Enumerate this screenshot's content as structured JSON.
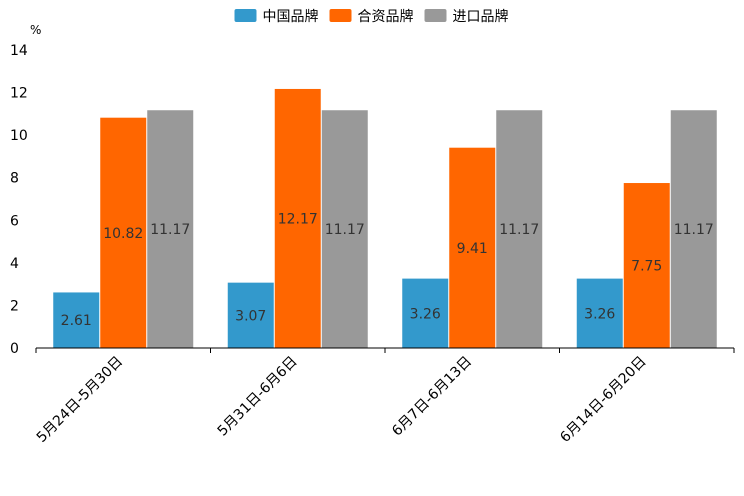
{
  "chart_data": {
    "type": "bar",
    "unit": "%",
    "categories": [
      "5月24日-5月30日",
      "5月31日-6月6日",
      "6月7日-6月13日",
      "6月14日-6月20日"
    ],
    "series": [
      {
        "name": "中国品牌",
        "color": "#3399cc",
        "values": [
          2.61,
          3.07,
          3.26,
          3.26
        ],
        "labels": [
          "2.61",
          "3.07",
          "3.26",
          "3.26"
        ]
      },
      {
        "name": "合资品牌",
        "color": "#ff6600",
        "values": [
          10.82,
          12.17,
          9.41,
          7.75
        ],
        "labels": [
          "10.82",
          "12.17",
          "9.41",
          "7.75"
        ]
      },
      {
        "name": "进口品牌",
        "color": "#999999",
        "values": [
          11.17,
          11.17,
          11.17,
          11.17
        ],
        "labels": [
          "11.17",
          "11.17",
          "11.17",
          "11.17"
        ]
      }
    ],
    "ylim": [
      0,
      14
    ],
    "yticks": [
      0,
      2,
      4,
      6,
      8,
      10,
      12,
      14
    ],
    "ytick_labels": [
      "0",
      "2",
      "4",
      "6",
      "8",
      "10",
      "12",
      "14"
    ],
    "legend_position": "top-center",
    "grid": false
  }
}
